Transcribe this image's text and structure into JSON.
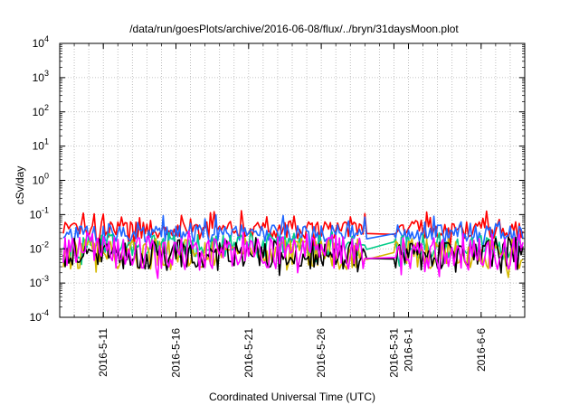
{
  "chart_data": {
    "type": "line",
    "title": "/data/run/goesPlots/archive/2016-06-08/flux/../bryn/31daysMoon.plot",
    "xlabel": "Coordinated Universal Time (UTC)",
    "ylabel": "cSv/day",
    "y_scale": "log",
    "ylim": [
      0.0001,
      10000
    ],
    "y_ticks": [
      {
        "value": 0.0001,
        "base": "10",
        "exp": "-4"
      },
      {
        "value": 0.001,
        "base": "10",
        "exp": "-3"
      },
      {
        "value": 0.01,
        "base": "10",
        "exp": "-2"
      },
      {
        "value": 0.1,
        "base": "10",
        "exp": "-1"
      },
      {
        "value": 1,
        "base": "10",
        "exp": "0"
      },
      {
        "value": 10,
        "base": "10",
        "exp": "1"
      },
      {
        "value": 100,
        "base": "10",
        "exp": "2"
      },
      {
        "value": 1000,
        "base": "10",
        "exp": "3"
      },
      {
        "value": 10000,
        "base": "10",
        "exp": "4"
      }
    ],
    "xlim": [
      "2016-05-08",
      "2016-06-09"
    ],
    "x_ticks": [
      "2016-5-11",
      "2016-5-16",
      "2016-5-21",
      "2016-5-26",
      "2016-5-31",
      "2016-6-1",
      "2016-6-6"
    ],
    "grid": true,
    "legend": "none",
    "data_gap": [
      "2016-05-29",
      "2016-05-31"
    ],
    "series": [
      {
        "color": "#ff0000",
        "base": 0.035,
        "spread": 0.25,
        "spikes": 0.12
      },
      {
        "color": "#1f66ff",
        "base": 0.028,
        "spread": 0.25,
        "spikes": 0.09
      },
      {
        "color": "#00cc88",
        "base": 0.012,
        "spread": 0.35,
        "spikes": 0.03
      },
      {
        "color": "#d4b800",
        "base": 0.007,
        "spread": 0.45,
        "spikes": 0.02
      },
      {
        "color": "#000000",
        "base": 0.0065,
        "spread": 0.45,
        "spikes": 0.02
      },
      {
        "color": "#ff00ff",
        "base": 0.0075,
        "spread": 0.5,
        "spikes": 0.03
      }
    ]
  }
}
